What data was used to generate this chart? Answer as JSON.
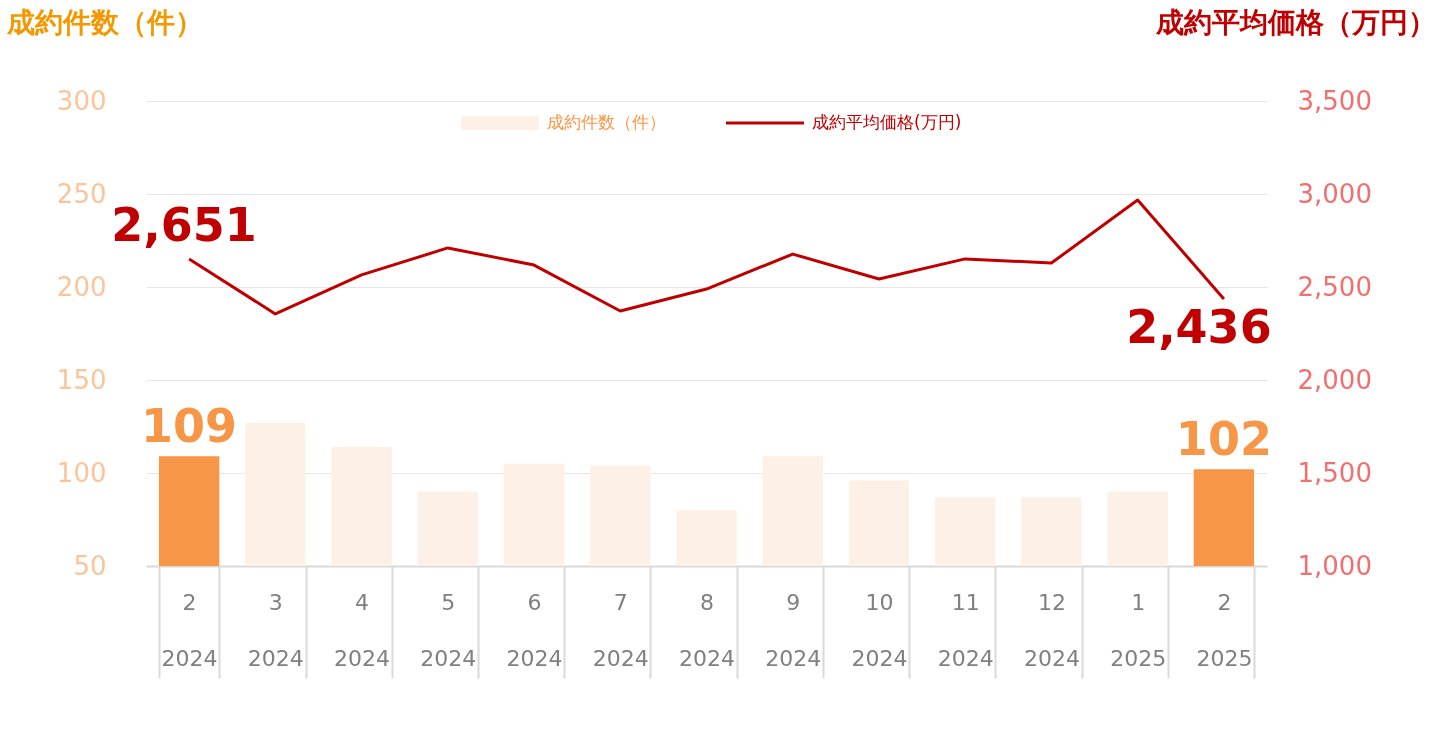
{
  "chart_data": {
    "type": "bar",
    "ylabel": "成約件数（件）",
    "y2label": "成約平均価格（万円）",
    "categories": [
      "2 2024",
      "3 2024",
      "4 2024",
      "5 2024",
      "6 2024",
      "7 2024",
      "8 2024",
      "9 2024",
      "10 2024",
      "11 2024",
      "12 2024",
      "1 2025",
      "2 2025"
    ],
    "series": [
      {
        "name": "成約件数（件）",
        "axis": "y",
        "color": "#fdf0e6",
        "colors": [
          "#f79646",
          "#fdf0e6",
          "#fdf0e6",
          "#fdf0e6",
          "#fdf0e6",
          "#fdf0e6",
          "#fdf0e6",
          "#fdf0e6",
          "#fdf0e6",
          "#fdf0e6",
          "#fdf0e6",
          "#fdf0e6",
          "#f79646"
        ],
        "values": [
          109,
          127,
          114,
          90,
          105,
          104,
          80,
          109,
          96,
          87,
          87,
          90,
          102
        ],
        "value_labels": [
          "109",
          null,
          null,
          null,
          null,
          null,
          null,
          null,
          null,
          null,
          null,
          null,
          "102"
        ]
      },
      {
        "name": "成約平均価格(万円)",
        "type": "line",
        "axis": "y2",
        "color": "#c00000",
        "values": [
          2651,
          2355,
          2565,
          2710,
          2618,
          2371,
          2489,
          2677,
          2543,
          2651,
          2629,
          2968,
          2436
        ],
        "value_labels": [
          "2,651",
          null,
          null,
          null,
          null,
          null,
          null,
          null,
          null,
          null,
          null,
          null,
          "2,436"
        ]
      }
    ],
    "ylim": [
      50,
      300
    ],
    "yticks": [
      50,
      100,
      150,
      200,
      250,
      300
    ],
    "y2lim": [
      1000,
      3500
    ],
    "y2ticks": [
      {
        "value": 1000,
        "label": "1,000"
      },
      {
        "value": 1500,
        "label": "1,500"
      },
      {
        "value": 2000,
        "label": "2,000"
      },
      {
        "value": 2500,
        "label": "2,500"
      },
      {
        "value": 3000,
        "label": "3,000"
      },
      {
        "value": 3500,
        "label": "3,500"
      }
    ],
    "grid": "y",
    "legend": "top",
    "line_style": "solid",
    "marker": "none"
  }
}
